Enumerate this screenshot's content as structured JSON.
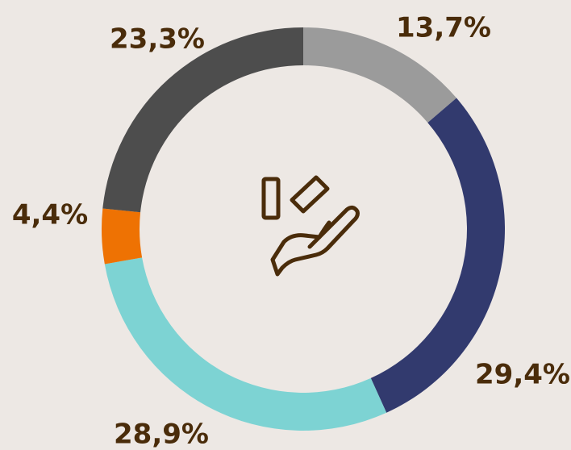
{
  "chart_data": {
    "type": "donut",
    "values": [
      13.7,
      29.4,
      28.9,
      4.4,
      23.3
    ],
    "value_labels": [
      "13,7%",
      "29,4%",
      "28,9%",
      "4,4%",
      "23,3%"
    ],
    "colors": [
      "#9b9b9b",
      "#323a6e",
      "#7dd3d3",
      "#ee7203",
      "#4d4d4d"
    ]
  }
}
